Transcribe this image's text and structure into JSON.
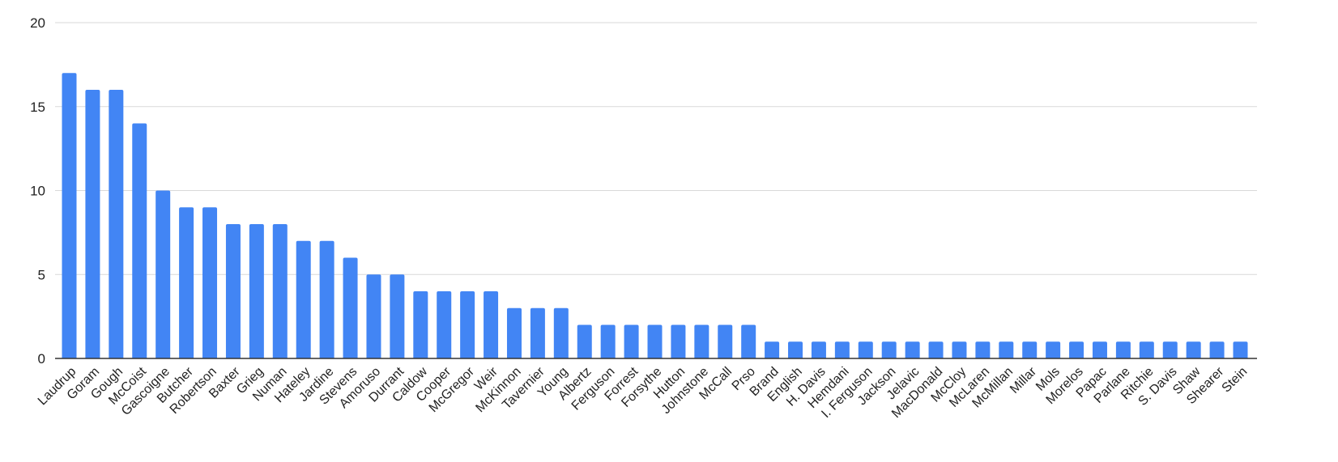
{
  "chart_data": {
    "type": "bar",
    "title": "",
    "xlabel": "",
    "ylabel": "",
    "ylim": [
      0,
      20
    ],
    "yticks": [
      0,
      5,
      10,
      15,
      20
    ],
    "grid": true,
    "bar_color": "#4285f4",
    "categories": [
      "Laudrup",
      "Goram",
      "Gough",
      "McCoist",
      "Gascoigne",
      "Butcher",
      "Robertson",
      "Baxter",
      "Grieg",
      "Numan",
      "Hateley",
      "Jardine",
      "Stevens",
      "Amoruso",
      "Durrant",
      "Caldow",
      "Cooper",
      "McGregor",
      "Weir",
      "McKinnon",
      "Tavernier",
      "Young",
      "Albertz",
      "Ferguson",
      "Forrest",
      "Forsythe",
      "Hutton",
      "Johnstone",
      "McCall",
      "Prso",
      "Brand",
      "English",
      "H. Davis",
      "Hemdani",
      "I. Ferguson",
      "Jackson",
      "Jelavic",
      "MacDonald",
      "McCloy",
      "McLaren",
      "McMillan",
      "Millar",
      "Mols",
      "Morelos",
      "Papac",
      "Parlane",
      "Ritchie",
      "S. Davis",
      "Shaw",
      "Shearer",
      "Stein"
    ],
    "values": [
      17,
      16,
      16,
      14,
      10,
      9,
      9,
      8,
      8,
      8,
      7,
      7,
      6,
      5,
      5,
      4,
      4,
      4,
      4,
      3,
      3,
      3,
      2,
      2,
      2,
      2,
      2,
      2,
      2,
      2,
      1,
      1,
      1,
      1,
      1,
      1,
      1,
      1,
      1,
      1,
      1,
      1,
      1,
      1,
      1,
      1,
      1,
      1,
      1,
      1,
      1
    ]
  }
}
